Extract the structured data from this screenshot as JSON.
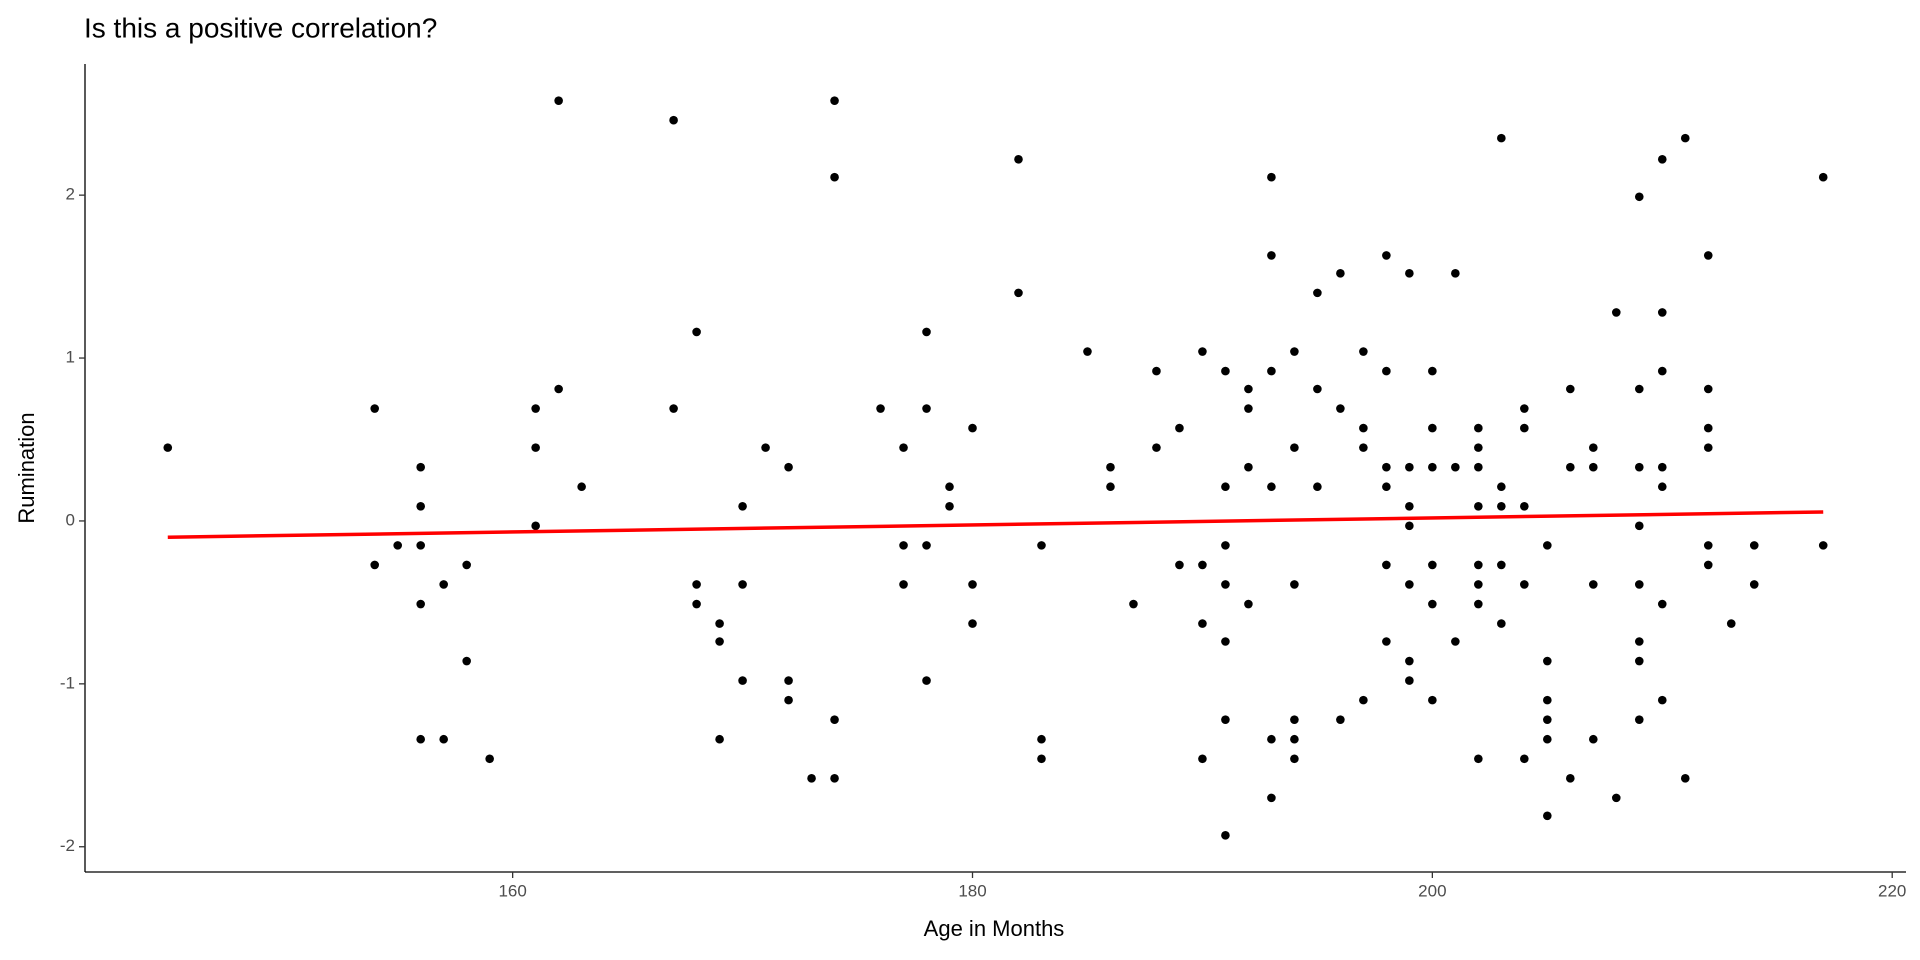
{
  "chart_data": {
    "type": "scatter",
    "title": "Is this a positive correlation?",
    "x_label": "Age in Months",
    "y_label": "Rumination",
    "color": "#000000",
    "x": [
      145,
      154,
      154,
      155,
      156,
      156,
      156,
      156,
      156,
      157,
      157,
      158,
      158,
      159,
      161,
      161,
      161,
      162,
      162,
      163,
      167,
      167,
      168,
      168,
      168,
      169,
      169,
      169,
      170,
      170,
      170,
      171,
      172,
      172,
      172,
      173,
      174,
      174,
      174,
      174,
      176,
      177,
      177,
      177,
      178,
      178,
      178,
      178,
      179,
      179,
      180,
      180,
      180,
      182,
      182,
      183,
      183,
      183,
      185,
      186,
      186,
      187,
      188,
      188,
      189,
      189,
      190,
      190,
      190,
      190,
      191,
      191,
      191,
      191,
      191,
      191,
      191,
      192,
      192,
      192,
      192,
      193,
      193,
      193,
      193,
      193,
      193,
      194,
      194,
      194,
      194,
      194,
      194,
      195,
      195,
      195,
      196,
      196,
      196,
      197,
      197,
      197,
      197,
      198,
      198,
      198,
      198,
      198,
      198,
      199,
      199,
      199,
      199,
      199,
      199,
      199,
      200,
      200,
      200,
      200,
      200,
      200,
      201,
      201,
      201,
      202,
      202,
      202,
      202,
      202,
      202,
      202,
      202,
      203,
      203,
      203,
      203,
      203,
      204,
      204,
      204,
      204,
      204,
      205,
      205,
      205,
      205,
      205,
      205,
      206,
      206,
      206,
      207,
      207,
      207,
      207,
      208,
      208,
      209,
      209,
      209,
      209,
      209,
      209,
      209,
      209,
      210,
      210,
      210,
      210,
      210,
      210,
      210,
      211,
      211,
      212,
      212,
      212,
      212,
      212,
      212,
      213,
      214,
      214,
      217,
      217
    ],
    "values": [
      0.45,
      0.69,
      -0.27,
      -0.15,
      0.33,
      0.09,
      -0.15,
      -0.51,
      -1.34,
      -0.39,
      -1.34,
      -0.27,
      -0.86,
      -1.46,
      0.69,
      0.45,
      -0.03,
      2.58,
      0.81,
      0.21,
      2.46,
      0.69,
      1.16,
      -0.39,
      -0.51,
      -0.63,
      -0.74,
      -1.34,
      0.09,
      -0.39,
      -0.98,
      0.45,
      0.33,
      -0.98,
      -1.1,
      -1.58,
      2.58,
      2.11,
      -1.22,
      -1.58,
      0.69,
      0.45,
      -0.15,
      -0.39,
      1.16,
      0.69,
      -0.15,
      -0.98,
      0.21,
      0.09,
      0.57,
      -0.39,
      -0.63,
      2.22,
      1.4,
      -0.15,
      -1.34,
      -1.46,
      1.04,
      0.33,
      0.21,
      -0.51,
      0.92,
      0.45,
      0.57,
      -0.27,
      1.04,
      -0.27,
      -0.63,
      -1.46,
      0.92,
      0.21,
      -0.15,
      -0.39,
      -0.74,
      -1.22,
      -1.93,
      0.81,
      0.69,
      0.33,
      -0.51,
      2.11,
      1.63,
      0.92,
      0.21,
      -1.34,
      -1.7,
      1.04,
      0.45,
      -0.39,
      -1.22,
      -1.34,
      -1.46,
      1.4,
      0.81,
      0.21,
      1.52,
      0.69,
      -1.22,
      1.04,
      0.57,
      0.45,
      -1.1,
      1.63,
      0.92,
      0.33,
      0.21,
      -0.27,
      -0.74,
      1.52,
      0.33,
      0.09,
      -0.03,
      -0.39,
      -0.86,
      -0.98,
      0.92,
      0.57,
      0.33,
      -0.27,
      -0.51,
      -1.1,
      1.52,
      0.33,
      -0.74,
      0.57,
      0.45,
      0.33,
      0.09,
      -0.27,
      -0.39,
      -0.51,
      -1.46,
      2.35,
      0.21,
      0.09,
      -0.27,
      -0.63,
      0.69,
      0.57,
      0.09,
      -0.39,
      -1.46,
      -0.15,
      -0.86,
      -1.1,
      -1.22,
      -1.34,
      -1.81,
      0.81,
      0.33,
      -1.58,
      0.45,
      0.33,
      -0.39,
      -1.34,
      1.28,
      -1.7,
      1.99,
      0.81,
      0.33,
      -0.03,
      -0.39,
      -0.74,
      -0.86,
      -1.22,
      2.22,
      1.28,
      0.92,
      0.33,
      0.21,
      -0.51,
      -1.1,
      2.35,
      -1.58,
      1.63,
      0.81,
      0.57,
      0.45,
      -0.15,
      -0.27,
      -0.63,
      -0.15,
      -0.39,
      2.11,
      -0.15
    ],
    "trend": {
      "color": "#ff0000",
      "x": [
        145,
        217
      ],
      "values": [
        -0.1,
        0.055
      ]
    },
    "xlim": [
      141.4,
      220.6
    ],
    "ylim": [
      -2.155,
      2.805
    ],
    "xticks": [
      160,
      180,
      200,
      220
    ],
    "yticks": [
      -2,
      -1,
      0,
      1,
      2
    ],
    "grid": false
  }
}
